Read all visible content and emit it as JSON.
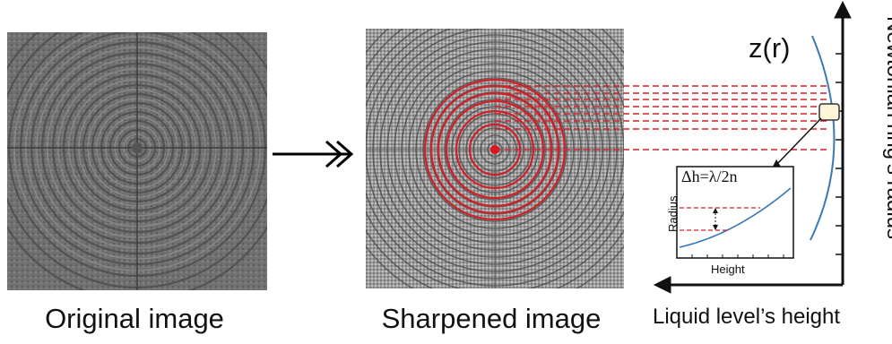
{
  "captions": {
    "original": "Original image",
    "sharpened": "Sharpened image",
    "x_axis": "Liquid level’s height",
    "y_axis": "Newtonian ring’s radius"
  },
  "curve_label": "z(r)",
  "inset": {
    "xlabel": "Height",
    "ylabel": "Radius",
    "formula": "Δh=λ/2n"
  },
  "colors": {
    "ring_overlay": "#d0202a",
    "curve": "#3a78b8",
    "axis": "#111111",
    "original_bg": "#6e6e6e",
    "sharpened_bg": "#9a9a9a"
  },
  "icons": {
    "transition_arrow": "double-headed-right-arrow"
  }
}
